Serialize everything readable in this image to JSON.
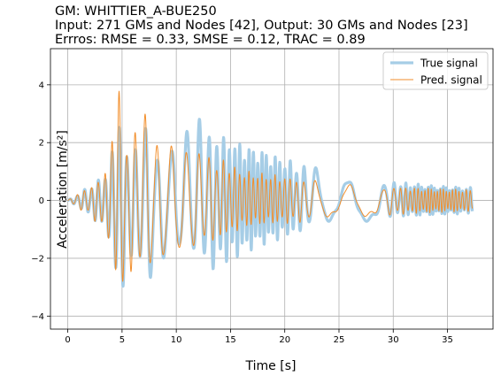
{
  "chart_data": {
    "type": "line",
    "title_lines": [
      "GM: WHITTIER_A-BUE250",
      "Input: 271 GMs and Nodes [42], Output: 30 GMs and Nodes [23]",
      "Errros: RMSE = 0.33, SMSE = 0.12, TRAC = 0.89"
    ],
    "xlabel": "Time [s]",
    "ylabel": "Acceleration [m/s²]",
    "xlim": [
      -1.6,
      39.2
    ],
    "ylim": [
      -4.45,
      5.25
    ],
    "xticks": [
      0,
      5,
      10,
      15,
      20,
      25,
      30,
      35
    ],
    "yticks": [
      -4,
      -2,
      0,
      2,
      4
    ],
    "grid": true,
    "legend_position": "top-right",
    "series": [
      {
        "name": "True signal",
        "color": "#a6cde6",
        "envelope": {
          "t": [
            0,
            1,
            2,
            3,
            3.8,
            4.6,
            5.0,
            5.6,
            6.5,
            7.3,
            8.0,
            9.5,
            11.0,
            12.0,
            13.0,
            14.0,
            15.0,
            16.0,
            17.0,
            18.0,
            20.0,
            22.0,
            24.0,
            26.0,
            28.0,
            30.0,
            32.0,
            34.0,
            37.3
          ],
          "upper": [
            0.0,
            0.25,
            0.5,
            0.8,
            1.1,
            3.3,
            2.5,
            1.9,
            1.7,
            3.1,
            1.8,
            1.8,
            2.4,
            2.85,
            2.6,
            2.35,
            2.2,
            2.0,
            1.85,
            1.75,
            1.45,
            1.2,
            1.05,
            0.85,
            0.72,
            0.65,
            0.58,
            0.5,
            0.45
          ],
          "lower": [
            0.0,
            -0.25,
            -0.55,
            -0.9,
            -1.3,
            -3.8,
            -3.1,
            -2.4,
            -2.3,
            -3.3,
            -2.5,
            -2.0,
            -2.2,
            -2.55,
            -2.45,
            -2.3,
            -2.1,
            -1.9,
            -1.7,
            -1.55,
            -1.3,
            -1.1,
            -0.95,
            -0.8,
            -0.7,
            -0.6,
            -0.55,
            -0.5,
            -0.45
          ]
        }
      },
      {
        "name": "Pred. signal",
        "color": "#f28e2b",
        "envelope": {
          "t": [
            0,
            1,
            2,
            3,
            3.8,
            4.5,
            4.8,
            5.3,
            6.2,
            7.2,
            8.0,
            9.5,
            11.0,
            12.0,
            13.0,
            14.0,
            15.0,
            16.0,
            17.0,
            18.0,
            20.0,
            22.0,
            24.0,
            26.0,
            28.0,
            30.0,
            32.0,
            34.0,
            37.3
          ],
          "upper": [
            0.0,
            0.3,
            0.45,
            0.85,
            1.2,
            4.8,
            3.6,
            2.3,
            2.5,
            3.1,
            2.1,
            1.9,
            1.75,
            1.7,
            1.55,
            1.45,
            1.3,
            1.05,
            1.0,
            0.95,
            0.85,
            0.75,
            0.7,
            0.6,
            0.55,
            0.5,
            0.45,
            0.42,
            0.38
          ],
          "lower": [
            0.0,
            -0.3,
            -0.5,
            -0.95,
            -1.35,
            -3.7,
            -3.4,
            -2.8,
            -2.6,
            -3.0,
            -2.5,
            -2.3,
            -2.1,
            -1.85,
            -1.6,
            -1.4,
            -1.2,
            -1.0,
            -0.9,
            -0.85,
            -0.8,
            -0.75,
            -0.7,
            -0.6,
            -0.55,
            -0.5,
            -0.45,
            -0.42,
            -0.38
          ]
        }
      }
    ]
  }
}
